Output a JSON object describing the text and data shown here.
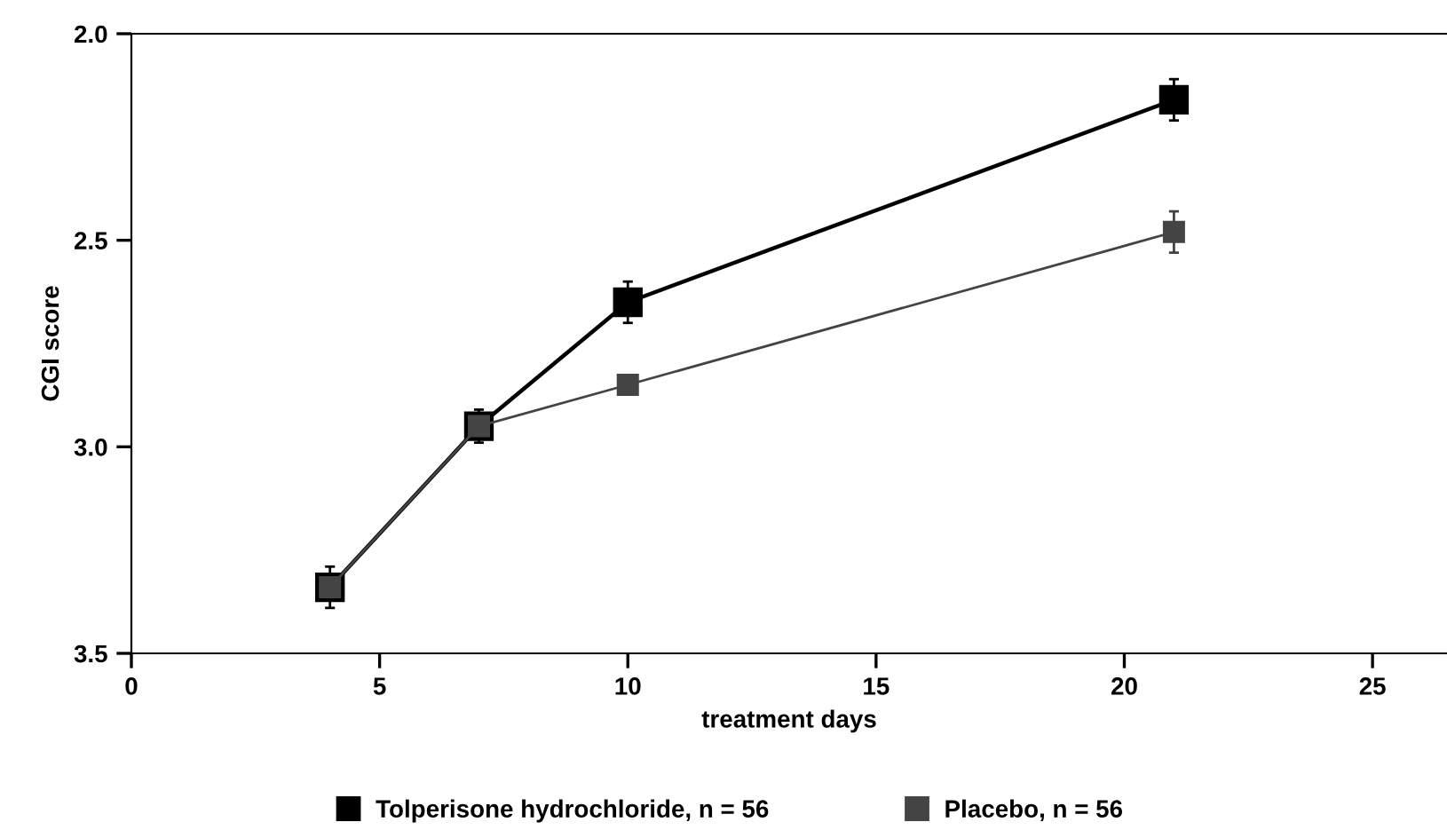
{
  "chart_data": {
    "type": "line",
    "xlabel": "treatment days",
    "ylabel": "CGI score",
    "x": [
      4,
      7,
      10,
      21
    ],
    "series": [
      {
        "name": "Tolperisone hydrochloride, n = 56",
        "color": "#000000",
        "values": [
          3.34,
          2.95,
          2.65,
          2.16
        ],
        "errors": [
          0.05,
          0.04,
          0.05,
          0.05
        ]
      },
      {
        "name": "Placebo, n = 56",
        "color": "#444444",
        "values": [
          3.34,
          2.95,
          2.85,
          2.48
        ],
        "errors": [
          null,
          null,
          0.02,
          0.05
        ]
      }
    ],
    "xlim": [
      0,
      26.5
    ],
    "xticks": [
      0,
      5,
      10,
      15,
      20,
      25
    ],
    "ylim": [
      3.5,
      2.0
    ],
    "yticks": [
      {
        "value": 3.5,
        "label": "3.5"
      },
      {
        "value": 3.0,
        "label": "3.0"
      },
      {
        "value": 2.5,
        "label": "2.5"
      },
      {
        "value": 2.0,
        "label": "2.0"
      }
    ],
    "marker": "square",
    "line_style": "solid",
    "grid": false,
    "legend": "bottom"
  }
}
